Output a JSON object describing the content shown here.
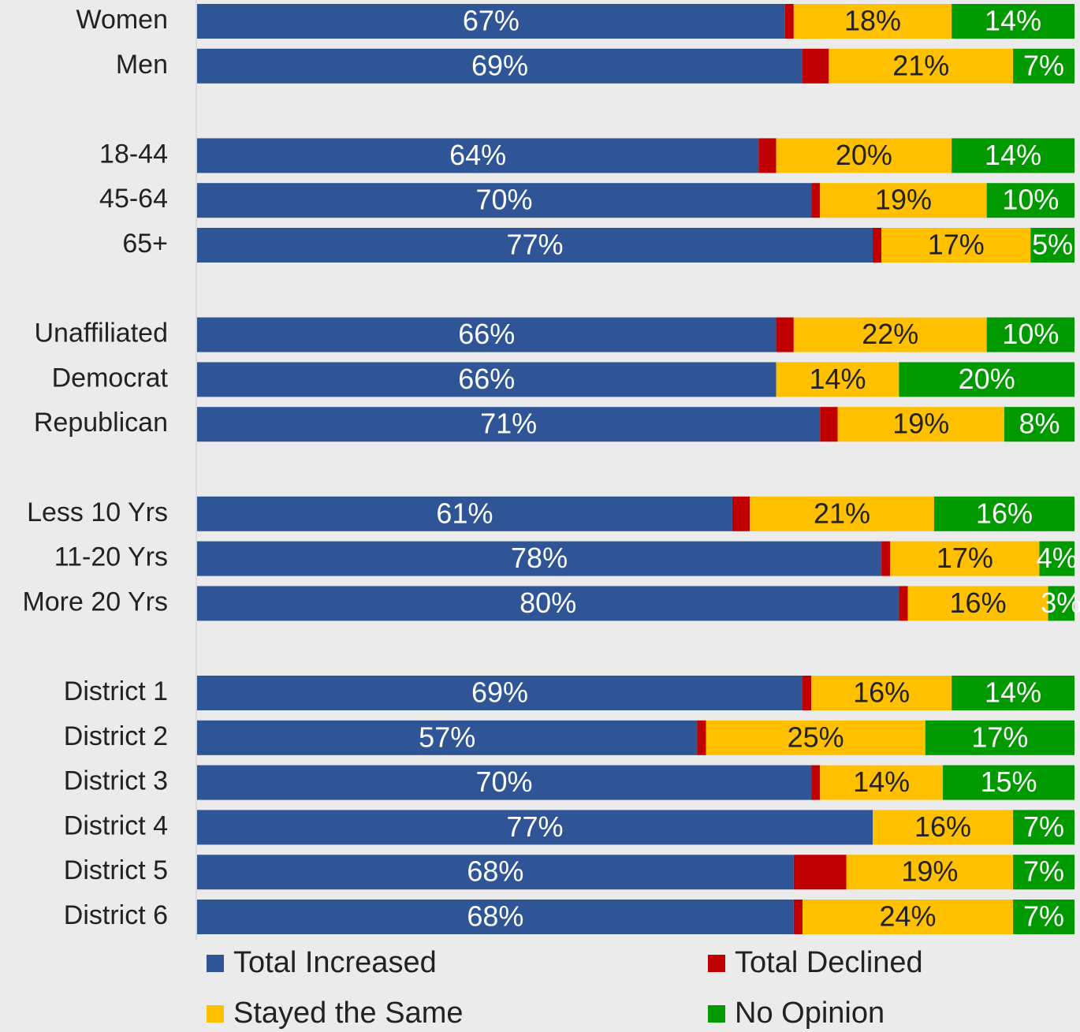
{
  "chart_data": {
    "type": "stacked_bar_horizontal",
    "categories": [
      "Women",
      "Men",
      null,
      "18-44",
      "45-64",
      "65+",
      null,
      "Unaffiliated",
      "Democrat",
      "Republican",
      null,
      "Less 10 Yrs",
      "11-20 Yrs",
      "More 20 Yrs",
      null,
      "District 1",
      "District 2",
      "District 3",
      "District 4",
      "District 5",
      "District 6"
    ],
    "series": [
      {
        "name": "Total Increased",
        "color": "#2f5597",
        "values": [
          67,
          69,
          null,
          64,
          70,
          77,
          null,
          66,
          66,
          71,
          null,
          61,
          78,
          80,
          null,
          69,
          57,
          70,
          77,
          68,
          68
        ],
        "value_labels": [
          "67%",
          "69%",
          null,
          "64%",
          "70%",
          "77%",
          null,
          "66%",
          "66%",
          "71%",
          null,
          "61%",
          "78%",
          "80%",
          null,
          "69%",
          "57%",
          "70%",
          "77%",
          "68%",
          "68%"
        ]
      },
      {
        "name": "Total Declined",
        "color": "#c00000",
        "values": [
          1,
          3,
          null,
          2,
          1,
          1,
          null,
          2,
          0,
          2,
          null,
          2,
          1,
          1,
          null,
          1,
          1,
          1,
          0,
          6,
          1
        ]
      },
      {
        "name": "Stayed the Same",
        "color": "#ffc000",
        "values": [
          18,
          21,
          null,
          20,
          19,
          17,
          null,
          22,
          14,
          19,
          null,
          21,
          17,
          16,
          null,
          16,
          25,
          14,
          16,
          19,
          24
        ],
        "value_labels": [
          "18%",
          "21%",
          null,
          "20%",
          "19%",
          "17%",
          null,
          "22%",
          "14%",
          "19%",
          null,
          "21%",
          "17%",
          "16%",
          null,
          "16%",
          "25%",
          "14%",
          "16%",
          "19%",
          "24%"
        ]
      },
      {
        "name": "No Opinion",
        "color": "#009900",
        "values": [
          14,
          7,
          null,
          14,
          10,
          5,
          null,
          10,
          20,
          8,
          null,
          16,
          4,
          3,
          null,
          14,
          17,
          15,
          7,
          7,
          7
        ],
        "value_labels": [
          "14%",
          "7%",
          null,
          "14%",
          "10%",
          "5%",
          null,
          "10%",
          "20%",
          "8%",
          null,
          "16%",
          "4%",
          "3%",
          null,
          "14%",
          "17%",
          "15%",
          "7%",
          "7%",
          "7%"
        ]
      }
    ],
    "xlim": [
      0,
      100
    ]
  }
}
